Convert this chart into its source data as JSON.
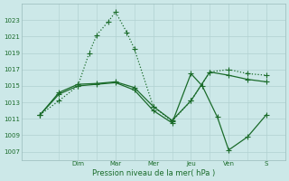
{
  "xlabel": "Pression niveau de la mer( hPa )",
  "bg_color": "#cce8e8",
  "grid_color": "#b0d0d0",
  "line_color": "#1a6b2a",
  "ylim": [
    1006,
    1025
  ],
  "yticks": [
    1007,
    1009,
    1011,
    1013,
    1015,
    1017,
    1019,
    1021,
    1023
  ],
  "xlim": [
    -0.5,
    6.5
  ],
  "day_positions": [
    1,
    2,
    3,
    4,
    5,
    6
  ],
  "day_labels": [
    "Dim",
    "Mar",
    "Mer",
    "Jeu",
    "Ven",
    "S"
  ],
  "line1_x": [
    0.0,
    0.5,
    1.0,
    1.3,
    1.5,
    1.8,
    2.0,
    2.3,
    2.5,
    3.0,
    3.5,
    4.0,
    4.5,
    5.0,
    5.5,
    6.0
  ],
  "line1_y": [
    1011.5,
    1013.2,
    1015.0,
    1019.0,
    1021.2,
    1022.8,
    1024.0,
    1021.5,
    1019.5,
    1012.5,
    1010.7,
    1013.2,
    1016.7,
    1017.0,
    1016.5,
    1016.3
  ],
  "line2_x": [
    0.0,
    0.5,
    1.0,
    1.5,
    2.0,
    2.5,
    3.0,
    3.5,
    4.0,
    4.5,
    5.0,
    5.5,
    6.0
  ],
  "line2_y": [
    1011.5,
    1014.2,
    1015.2,
    1015.3,
    1015.5,
    1014.8,
    1012.5,
    1010.8,
    1013.2,
    1016.7,
    1016.3,
    1015.8,
    1015.5
  ],
  "line3_x": [
    0.0,
    0.5,
    1.0,
    1.5,
    2.0,
    2.5,
    3.0,
    3.5,
    4.0,
    4.3,
    4.7,
    5.0,
    5.5,
    6.0
  ],
  "line3_y": [
    1011.5,
    1014.0,
    1015.0,
    1015.2,
    1015.4,
    1014.5,
    1012.0,
    1010.5,
    1016.5,
    1015.0,
    1011.2,
    1007.2,
    1008.8,
    1011.5
  ]
}
